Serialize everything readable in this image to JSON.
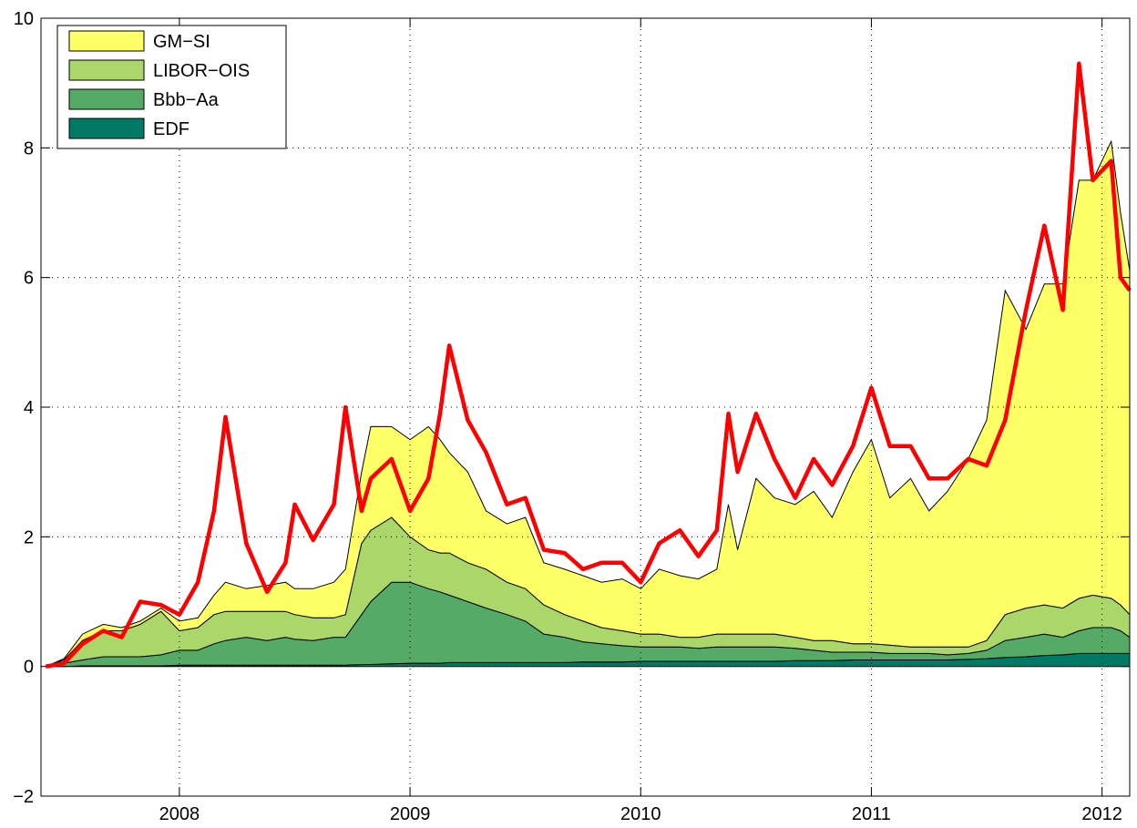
{
  "chart_data": {
    "type": "stacked_area",
    "x": [
      2007.42,
      2007.5,
      2007.58,
      2007.67,
      2007.75,
      2007.83,
      2007.92,
      2008.0,
      2008.08,
      2008.15,
      2008.2,
      2008.29,
      2008.38,
      2008.46,
      2008.5,
      2008.58,
      2008.67,
      2008.72,
      2008.79,
      2008.83,
      2008.92,
      2009.0,
      2009.08,
      2009.13,
      2009.17,
      2009.25,
      2009.33,
      2009.42,
      2009.5,
      2009.58,
      2009.67,
      2009.75,
      2009.83,
      2009.92,
      2010.0,
      2010.08,
      2010.17,
      2010.25,
      2010.33,
      2010.38,
      2010.42,
      2010.5,
      2010.58,
      2010.67,
      2010.75,
      2010.83,
      2010.92,
      2011.0,
      2011.08,
      2011.17,
      2011.25,
      2011.33,
      2011.42,
      2011.5,
      2011.58,
      2011.67,
      2011.75,
      2011.83,
      2011.9,
      2011.96,
      2012.04,
      2012.08,
      2012.12
    ],
    "series": [
      {
        "name": "EDF",
        "color": "#007a66",
        "values": [
          0,
          0,
          0.01,
          0.01,
          0.01,
          0.01,
          0.01,
          0.02,
          0.02,
          0.02,
          0.02,
          0.02,
          0.02,
          0.02,
          0.02,
          0.02,
          0.02,
          0.02,
          0.03,
          0.03,
          0.04,
          0.05,
          0.05,
          0.05,
          0.06,
          0.06,
          0.06,
          0.06,
          0.06,
          0.06,
          0.06,
          0.07,
          0.07,
          0.07,
          0.08,
          0.08,
          0.08,
          0.08,
          0.08,
          0.08,
          0.08,
          0.08,
          0.08,
          0.09,
          0.09,
          0.09,
          0.1,
          0.1,
          0.1,
          0.1,
          0.1,
          0.1,
          0.11,
          0.12,
          0.14,
          0.15,
          0.17,
          0.18,
          0.2,
          0.2,
          0.2,
          0.2,
          0.2
        ]
      },
      {
        "name": "Bbb−Aa",
        "color": "#55aa66",
        "values": [
          0,
          0.05,
          0.09,
          0.14,
          0.14,
          0.14,
          0.17,
          0.23,
          0.23,
          0.33,
          0.38,
          0.43,
          0.38,
          0.43,
          0.4,
          0.38,
          0.43,
          0.43,
          0.77,
          0.97,
          1.26,
          1.25,
          1.15,
          1.1,
          1.04,
          0.94,
          0.84,
          0.74,
          0.64,
          0.44,
          0.39,
          0.31,
          0.28,
          0.25,
          0.22,
          0.22,
          0.22,
          0.2,
          0.22,
          0.22,
          0.22,
          0.22,
          0.22,
          0.19,
          0.16,
          0.13,
          0.12,
          0.12,
          0.1,
          0.1,
          0.1,
          0.08,
          0.09,
          0.13,
          0.26,
          0.3,
          0.33,
          0.27,
          0.35,
          0.4,
          0.4,
          0.35,
          0.25
        ]
      },
      {
        "name": "LIBOR−OIS",
        "color": "#aad66a",
        "values": [
          0,
          0.05,
          0.3,
          0.4,
          0.4,
          0.5,
          0.67,
          0.3,
          0.35,
          0.45,
          0.45,
          0.4,
          0.45,
          0.4,
          0.38,
          0.35,
          0.3,
          0.35,
          1.1,
          1.1,
          1.0,
          0.7,
          0.6,
          0.6,
          0.65,
          0.6,
          0.6,
          0.5,
          0.5,
          0.45,
          0.35,
          0.32,
          0.25,
          0.23,
          0.2,
          0.2,
          0.15,
          0.17,
          0.2,
          0.2,
          0.2,
          0.2,
          0.2,
          0.17,
          0.15,
          0.18,
          0.13,
          0.13,
          0.13,
          0.1,
          0.1,
          0.12,
          0.1,
          0.15,
          0.4,
          0.45,
          0.45,
          0.45,
          0.5,
          0.5,
          0.45,
          0.4,
          0.35
        ]
      },
      {
        "name": "GM−SI",
        "color": "#ffff66",
        "values": [
          0,
          0.02,
          0.1,
          0.1,
          0.05,
          0.05,
          0.05,
          0.15,
          0.15,
          0.3,
          0.45,
          0.35,
          0.4,
          0.45,
          0.4,
          0.45,
          0.55,
          0.7,
          1.1,
          1.6,
          1.4,
          1.5,
          1.9,
          1.75,
          1.55,
          1.4,
          0.9,
          0.9,
          1.1,
          0.65,
          0.7,
          0.7,
          0.7,
          0.8,
          0.7,
          1.0,
          0.95,
          0.9,
          1.0,
          2.0,
          1.3,
          2.4,
          2.1,
          2.05,
          2.3,
          1.9,
          2.65,
          3.15,
          2.27,
          2.6,
          2.1,
          2.4,
          2.9,
          3.4,
          5.0,
          4.3,
          4.95,
          5.0,
          6.45,
          6.4,
          7.05,
          6.05,
          5.3
        ]
      }
    ],
    "line": {
      "color": "#ff0000",
      "values": [
        0,
        0.05,
        0.35,
        0.55,
        0.45,
        1.0,
        0.95,
        0.8,
        1.3,
        2.4,
        3.85,
        1.9,
        1.15,
        1.6,
        2.5,
        1.95,
        2.5,
        4.0,
        2.4,
        2.9,
        3.2,
        2.4,
        2.9,
        3.9,
        4.95,
        3.8,
        3.3,
        2.5,
        2.6,
        1.8,
        1.75,
        1.5,
        1.6,
        1.6,
        1.3,
        1.9,
        2.1,
        1.7,
        2.1,
        3.9,
        3.0,
        3.9,
        3.2,
        2.6,
        3.2,
        2.8,
        3.4,
        4.3,
        3.4,
        3.4,
        2.9,
        2.9,
        3.2,
        3.1,
        3.8,
        5.5,
        6.8,
        5.5,
        9.3,
        7.5,
        7.8,
        6.0,
        5.8
      ]
    },
    "xlim": [
      2007.4,
      2012.12
    ],
    "xticks": [
      2008,
      2009,
      2010,
      2011,
      2012
    ],
    "ylim": [
      -2,
      10
    ],
    "yticks": [
      {
        "value": -2,
        "label": "−2"
      },
      0,
      2,
      4,
      6,
      8,
      10
    ],
    "grid": true,
    "legend": "upper left"
  }
}
